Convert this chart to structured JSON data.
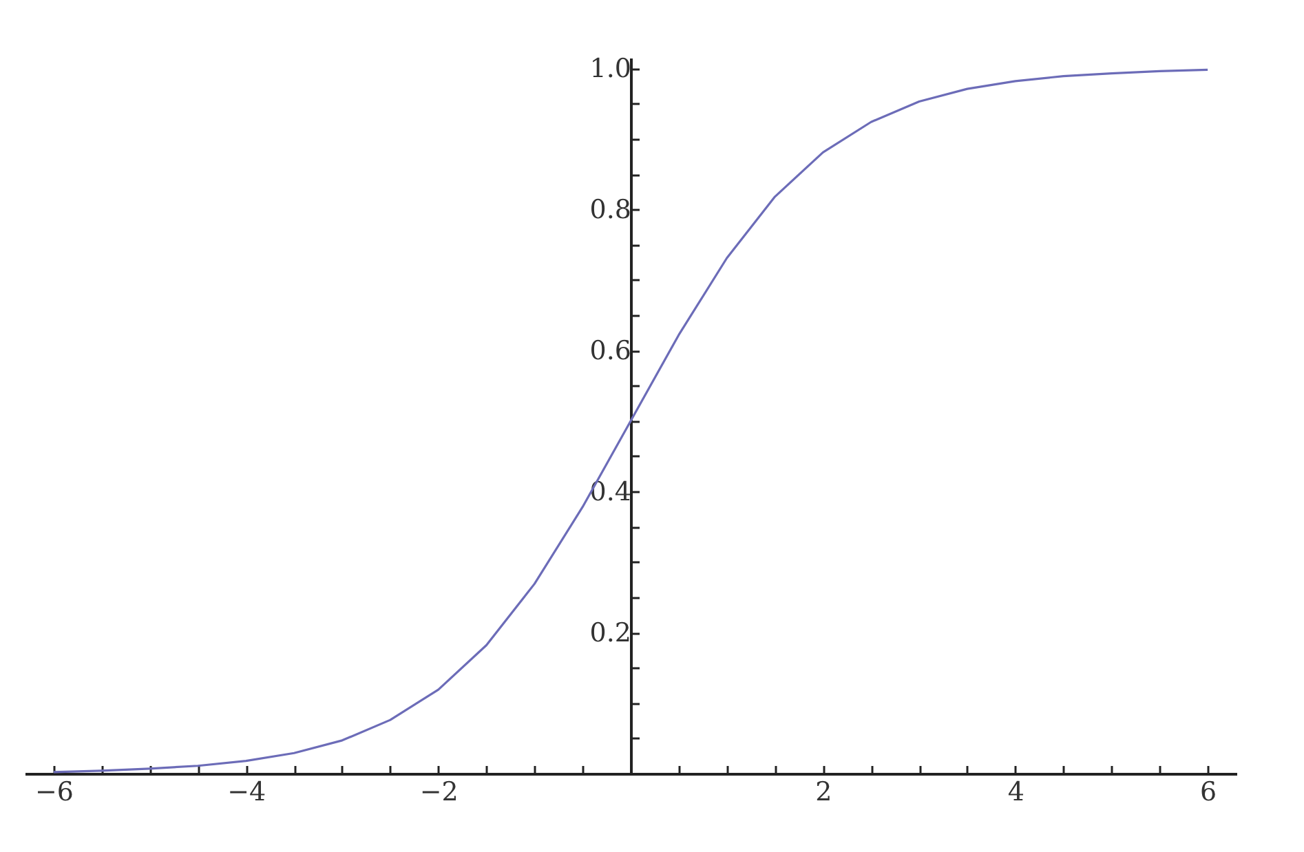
{
  "chart_data": {
    "type": "line",
    "x": [
      -6,
      -5.5,
      -5,
      -4.5,
      -4,
      -3.5,
      -3,
      -2.5,
      -2,
      -1.5,
      -1,
      -0.5,
      0,
      0.5,
      1,
      1.5,
      2,
      2.5,
      3,
      3.5,
      4,
      4.5,
      5,
      5.5,
      6
    ],
    "series": [
      {
        "color": "#6c6cb8",
        "values": [
          0.002,
          0.004,
          0.007,
          0.011,
          0.018,
          0.029,
          0.047,
          0.076,
          0.119,
          0.182,
          0.269,
          0.378,
          0.5,
          0.622,
          0.731,
          0.818,
          0.881,
          0.924,
          0.953,
          0.971,
          0.982,
          0.989,
          0.993,
          0.996,
          0.998
        ]
      }
    ],
    "xlim": [
      -6.3,
      6.3
    ],
    "ylim": [
      0,
      1.015
    ],
    "xticks": [
      {
        "value": -6,
        "label": "−6"
      },
      {
        "value": -5.5,
        "label": null
      },
      {
        "value": -5,
        "label": null
      },
      {
        "value": -4.5,
        "label": null
      },
      {
        "value": -4,
        "label": "−4"
      },
      {
        "value": -3.5,
        "label": null
      },
      {
        "value": -3,
        "label": null
      },
      {
        "value": -2.5,
        "label": null
      },
      {
        "value": -2,
        "label": "−2"
      },
      {
        "value": -1.5,
        "label": null
      },
      {
        "value": -1,
        "label": null
      },
      {
        "value": -0.5,
        "label": null
      },
      {
        "value": 0.5,
        "label": null
      },
      {
        "value": 1,
        "label": null
      },
      {
        "value": 1.5,
        "label": null
      },
      {
        "value": 2,
        "label": "2"
      },
      {
        "value": 2.5,
        "label": null
      },
      {
        "value": 3,
        "label": null
      },
      {
        "value": 3.5,
        "label": null
      },
      {
        "value": 4,
        "label": "4"
      },
      {
        "value": 4.5,
        "label": null
      },
      {
        "value": 5,
        "label": null
      },
      {
        "value": 5.5,
        "label": null
      },
      {
        "value": 6,
        "label": "6"
      }
    ],
    "yticks": [
      {
        "value": 0.05,
        "label": null
      },
      {
        "value": 0.1,
        "label": null
      },
      {
        "value": 0.15,
        "label": null
      },
      0.2,
      {
        "value": 0.25,
        "label": null
      },
      {
        "value": 0.3,
        "label": null
      },
      {
        "value": 0.35,
        "label": null
      },
      0.4,
      {
        "value": 0.45,
        "label": null
      },
      {
        "value": 0.5,
        "label": null
      },
      {
        "value": 0.55,
        "label": null
      },
      0.6,
      {
        "value": 0.65,
        "label": null
      },
      {
        "value": 0.7,
        "label": null
      },
      {
        "value": 0.75,
        "label": null
      },
      0.8,
      {
        "value": 0.85,
        "label": null
      },
      {
        "value": 0.9,
        "label": null
      },
      {
        "value": 0.95,
        "label": null
      },
      {
        "value": 1,
        "label": "1.0"
      }
    ],
    "grid": false,
    "marker": "none",
    "line_style": "solid"
  }
}
